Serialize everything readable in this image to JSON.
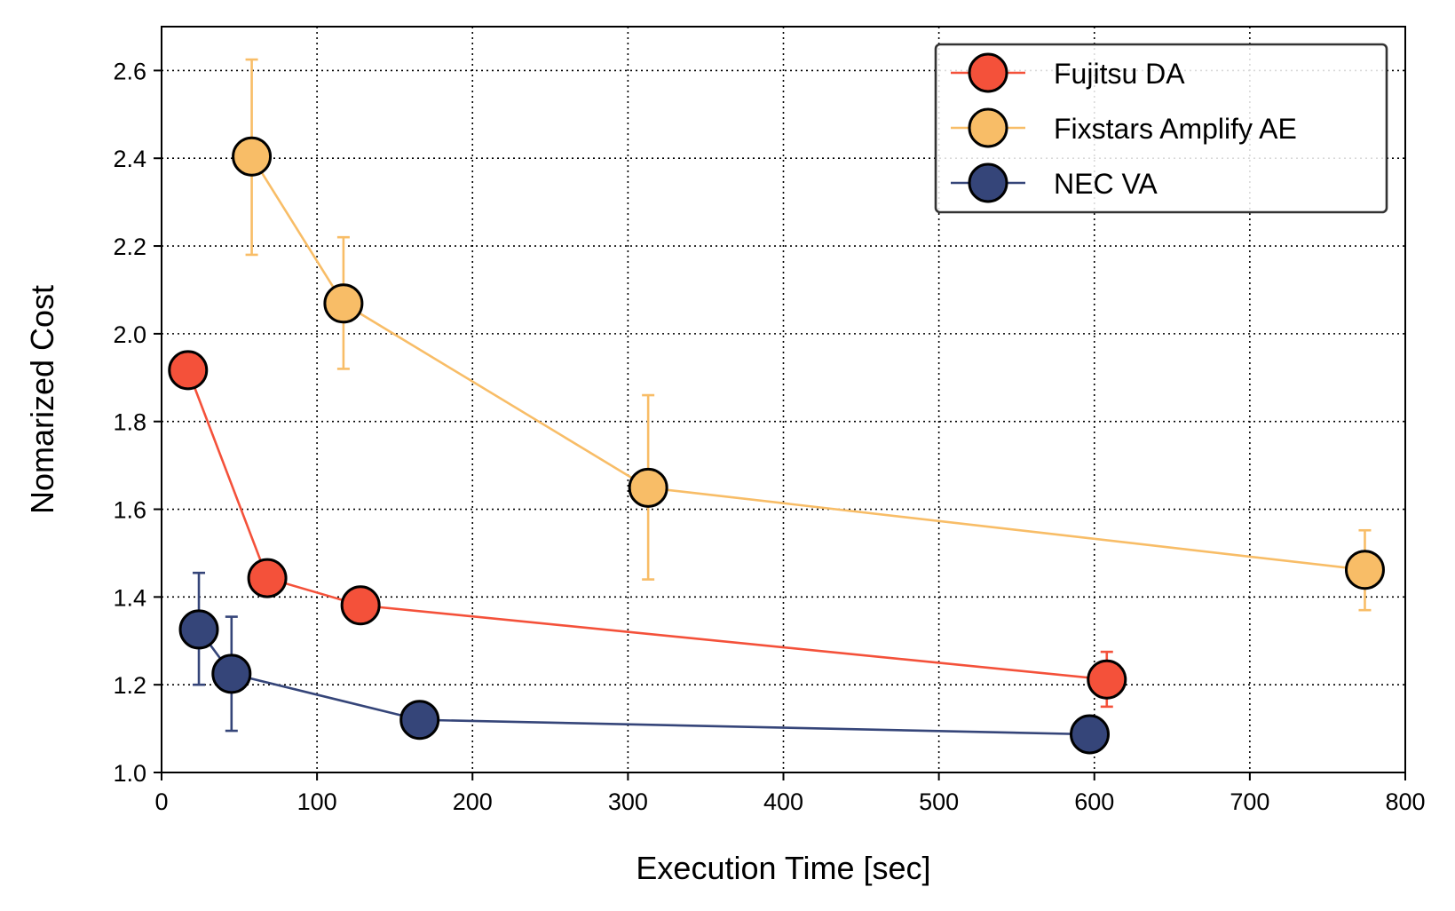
{
  "chart_data": {
    "type": "line",
    "title": "",
    "xlabel": "Execution Time [sec]",
    "ylabel": "Nomarized Cost",
    "xlim": [
      0,
      800
    ],
    "ylim": [
      1.0,
      2.7
    ],
    "xticks": [
      "0",
      "100",
      "200",
      "300",
      "400",
      "500",
      "600",
      "700",
      "800"
    ],
    "yticks": [
      "1.0",
      "1.2",
      "1.4",
      "1.6",
      "1.8",
      "2.0",
      "2.2",
      "2.4",
      "2.6"
    ],
    "grid": true,
    "grid_style": "dotted",
    "legend_position": "top-right",
    "series": [
      {
        "name": "Fujitsu DA",
        "color": "#F4513A",
        "x": [
          17,
          68,
          128,
          608
        ],
        "y": [
          1.917,
          1.443,
          1.381,
          1.212
        ],
        "err_low": [
          null,
          null,
          null,
          1.15
        ],
        "err_high": [
          null,
          null,
          null,
          1.275
        ]
      },
      {
        "name": "Fixstars Amplify AE",
        "color": "#F8BD67",
        "x": [
          58,
          117,
          313,
          774
        ],
        "y": [
          2.404,
          2.069,
          1.649,
          1.462
        ],
        "err_low": [
          2.18,
          1.92,
          1.44,
          1.37
        ],
        "err_high": [
          2.625,
          2.22,
          1.86,
          1.552
        ]
      },
      {
        "name": "NEC VA",
        "color": "#354579",
        "x": [
          24,
          45,
          166,
          597
        ],
        "y": [
          1.326,
          1.225,
          1.12,
          1.087
        ],
        "err_low": [
          1.2,
          1.095,
          null,
          null
        ],
        "err_high": [
          1.455,
          1.355,
          null,
          null
        ]
      }
    ]
  }
}
